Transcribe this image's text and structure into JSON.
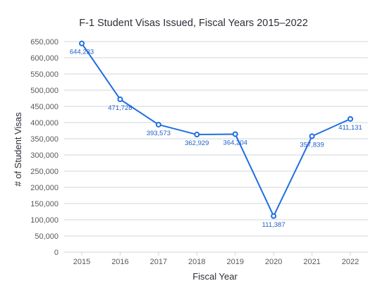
{
  "chart_data": {
    "type": "line",
    "title": "F-1 Student Visas Issued, Fiscal Years 2015–2022",
    "xlabel": "Fiscal Year",
    "ylabel": "# of Student Visas",
    "x": [
      "2015",
      "2016",
      "2017",
      "2018",
      "2019",
      "2020",
      "2021",
      "2022"
    ],
    "series": [
      {
        "values": [
          644233,
          471728,
          393573,
          362929,
          364204,
          111387,
          357839,
          411131
        ],
        "labels": [
          "644,233",
          "471,728",
          "393,573",
          "362,929",
          "364,204",
          "111,387",
          "357,839",
          "411,131"
        ]
      }
    ],
    "ylim": [
      0,
      650000
    ],
    "yticks": [
      0,
      50000,
      100000,
      150000,
      200000,
      250000,
      300000,
      350000,
      400000,
      450000,
      500000,
      550000,
      600000,
      650000
    ],
    "ytick_labels": [
      "0",
      "50,000",
      "100,000",
      "150,000",
      "200,000",
      "250,000",
      "300,000",
      "350,000",
      "400,000",
      "450,000",
      "500,000",
      "550,000",
      "600,000",
      "650,000"
    ],
    "grid": true,
    "line_color": "#1f6fe0",
    "label_color": "#1f5fc4",
    "grid_color": "#d2d5dc",
    "text_color": "#55595f",
    "title_color": "#2b2f36"
  }
}
